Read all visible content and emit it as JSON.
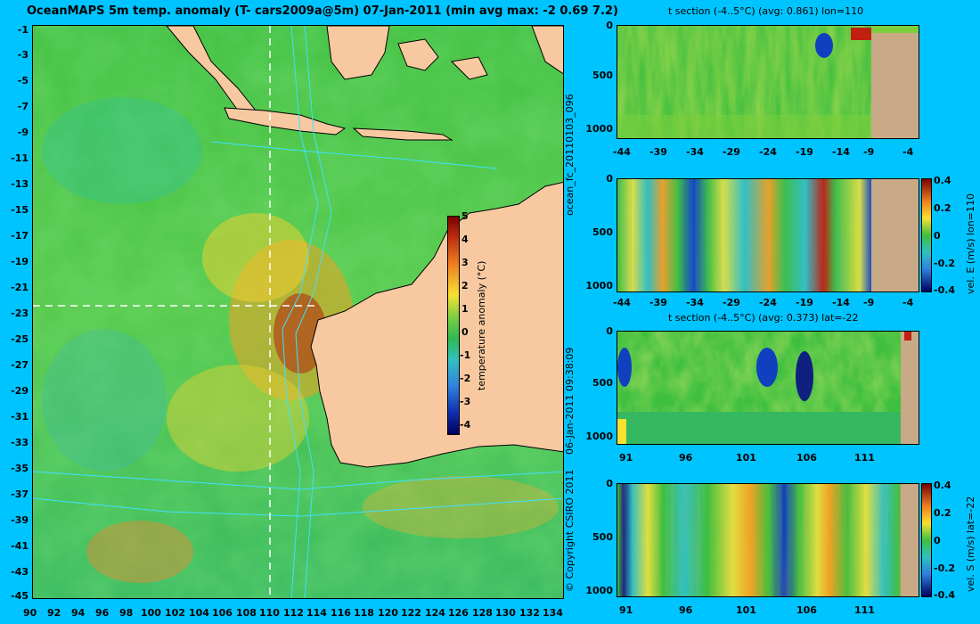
{
  "header": {
    "title": "OceanMAPS 5m temp. anomaly (T- cars2009a@5m) 07-Jan-2011 (min avg max: -2 0.69 7.2)"
  },
  "side_text": {
    "run_id": "ocean_fc_20110103_096",
    "timestamp": "06-Jan-2011 09:38:09",
    "copyright": "© Copyright CSIRO 2011"
  },
  "map": {
    "lat_ticks": [
      "-1",
      "-3",
      "-5",
      "-7",
      "-9",
      "-11",
      "-13",
      "-15",
      "-17",
      "-19",
      "-21",
      "-23",
      "-25",
      "-27",
      "-29",
      "-31",
      "-33",
      "-35",
      "-37",
      "-39",
      "-41",
      "-43",
      "-45"
    ],
    "lon_ticks": [
      "90",
      "92",
      "94",
      "96",
      "98",
      "100",
      "102",
      "104",
      "106",
      "108",
      "110",
      "112",
      "114",
      "116",
      "118",
      "120",
      "122",
      "124",
      "126",
      "128",
      "130",
      "132",
      "134"
    ],
    "colorbar": {
      "label": "temperature anomaly (°C)",
      "ticks": [
        "5",
        "4",
        "3",
        "2",
        "1",
        "0",
        "-1",
        "-2",
        "-3",
        "-4"
      ]
    }
  },
  "panels": [
    {
      "title": "t section (-4..5°C) (avg: 0.861) lon=110",
      "y_ticks": [
        "0",
        "500",
        "1000"
      ],
      "x_ticks": [
        "-44",
        "-39",
        "-34",
        "-29",
        "-24",
        "-19",
        "-14",
        "-9",
        "-4"
      ]
    },
    {
      "title": "",
      "y_ticks": [
        "0",
        "500",
        "1000"
      ],
      "x_ticks": [
        "-44",
        "-39",
        "-34",
        "-29",
        "-24",
        "-19",
        "-14",
        "-9",
        "-4"
      ],
      "colorbar": {
        "label": "vel. E (m/s) lon=110",
        "ticks": [
          "0.4",
          "0.2",
          "0",
          "-0.2",
          "-0.4"
        ]
      }
    },
    {
      "title": "t section (-4..5°C) (avg: 0.373) lat=-22",
      "y_ticks": [
        "0",
        "500",
        "1000"
      ],
      "x_ticks": [
        "91",
        "96",
        "101",
        "106",
        "111"
      ]
    },
    {
      "title": "",
      "y_ticks": [
        "0",
        "500",
        "1000"
      ],
      "x_ticks": [
        "91",
        "96",
        "101",
        "106",
        "111"
      ],
      "colorbar": {
        "label": "vel. S (m/s) lat=-22",
        "ticks": [
          "0.4",
          "0.2",
          "0",
          "-0.2",
          "-0.4"
        ]
      }
    }
  ]
}
